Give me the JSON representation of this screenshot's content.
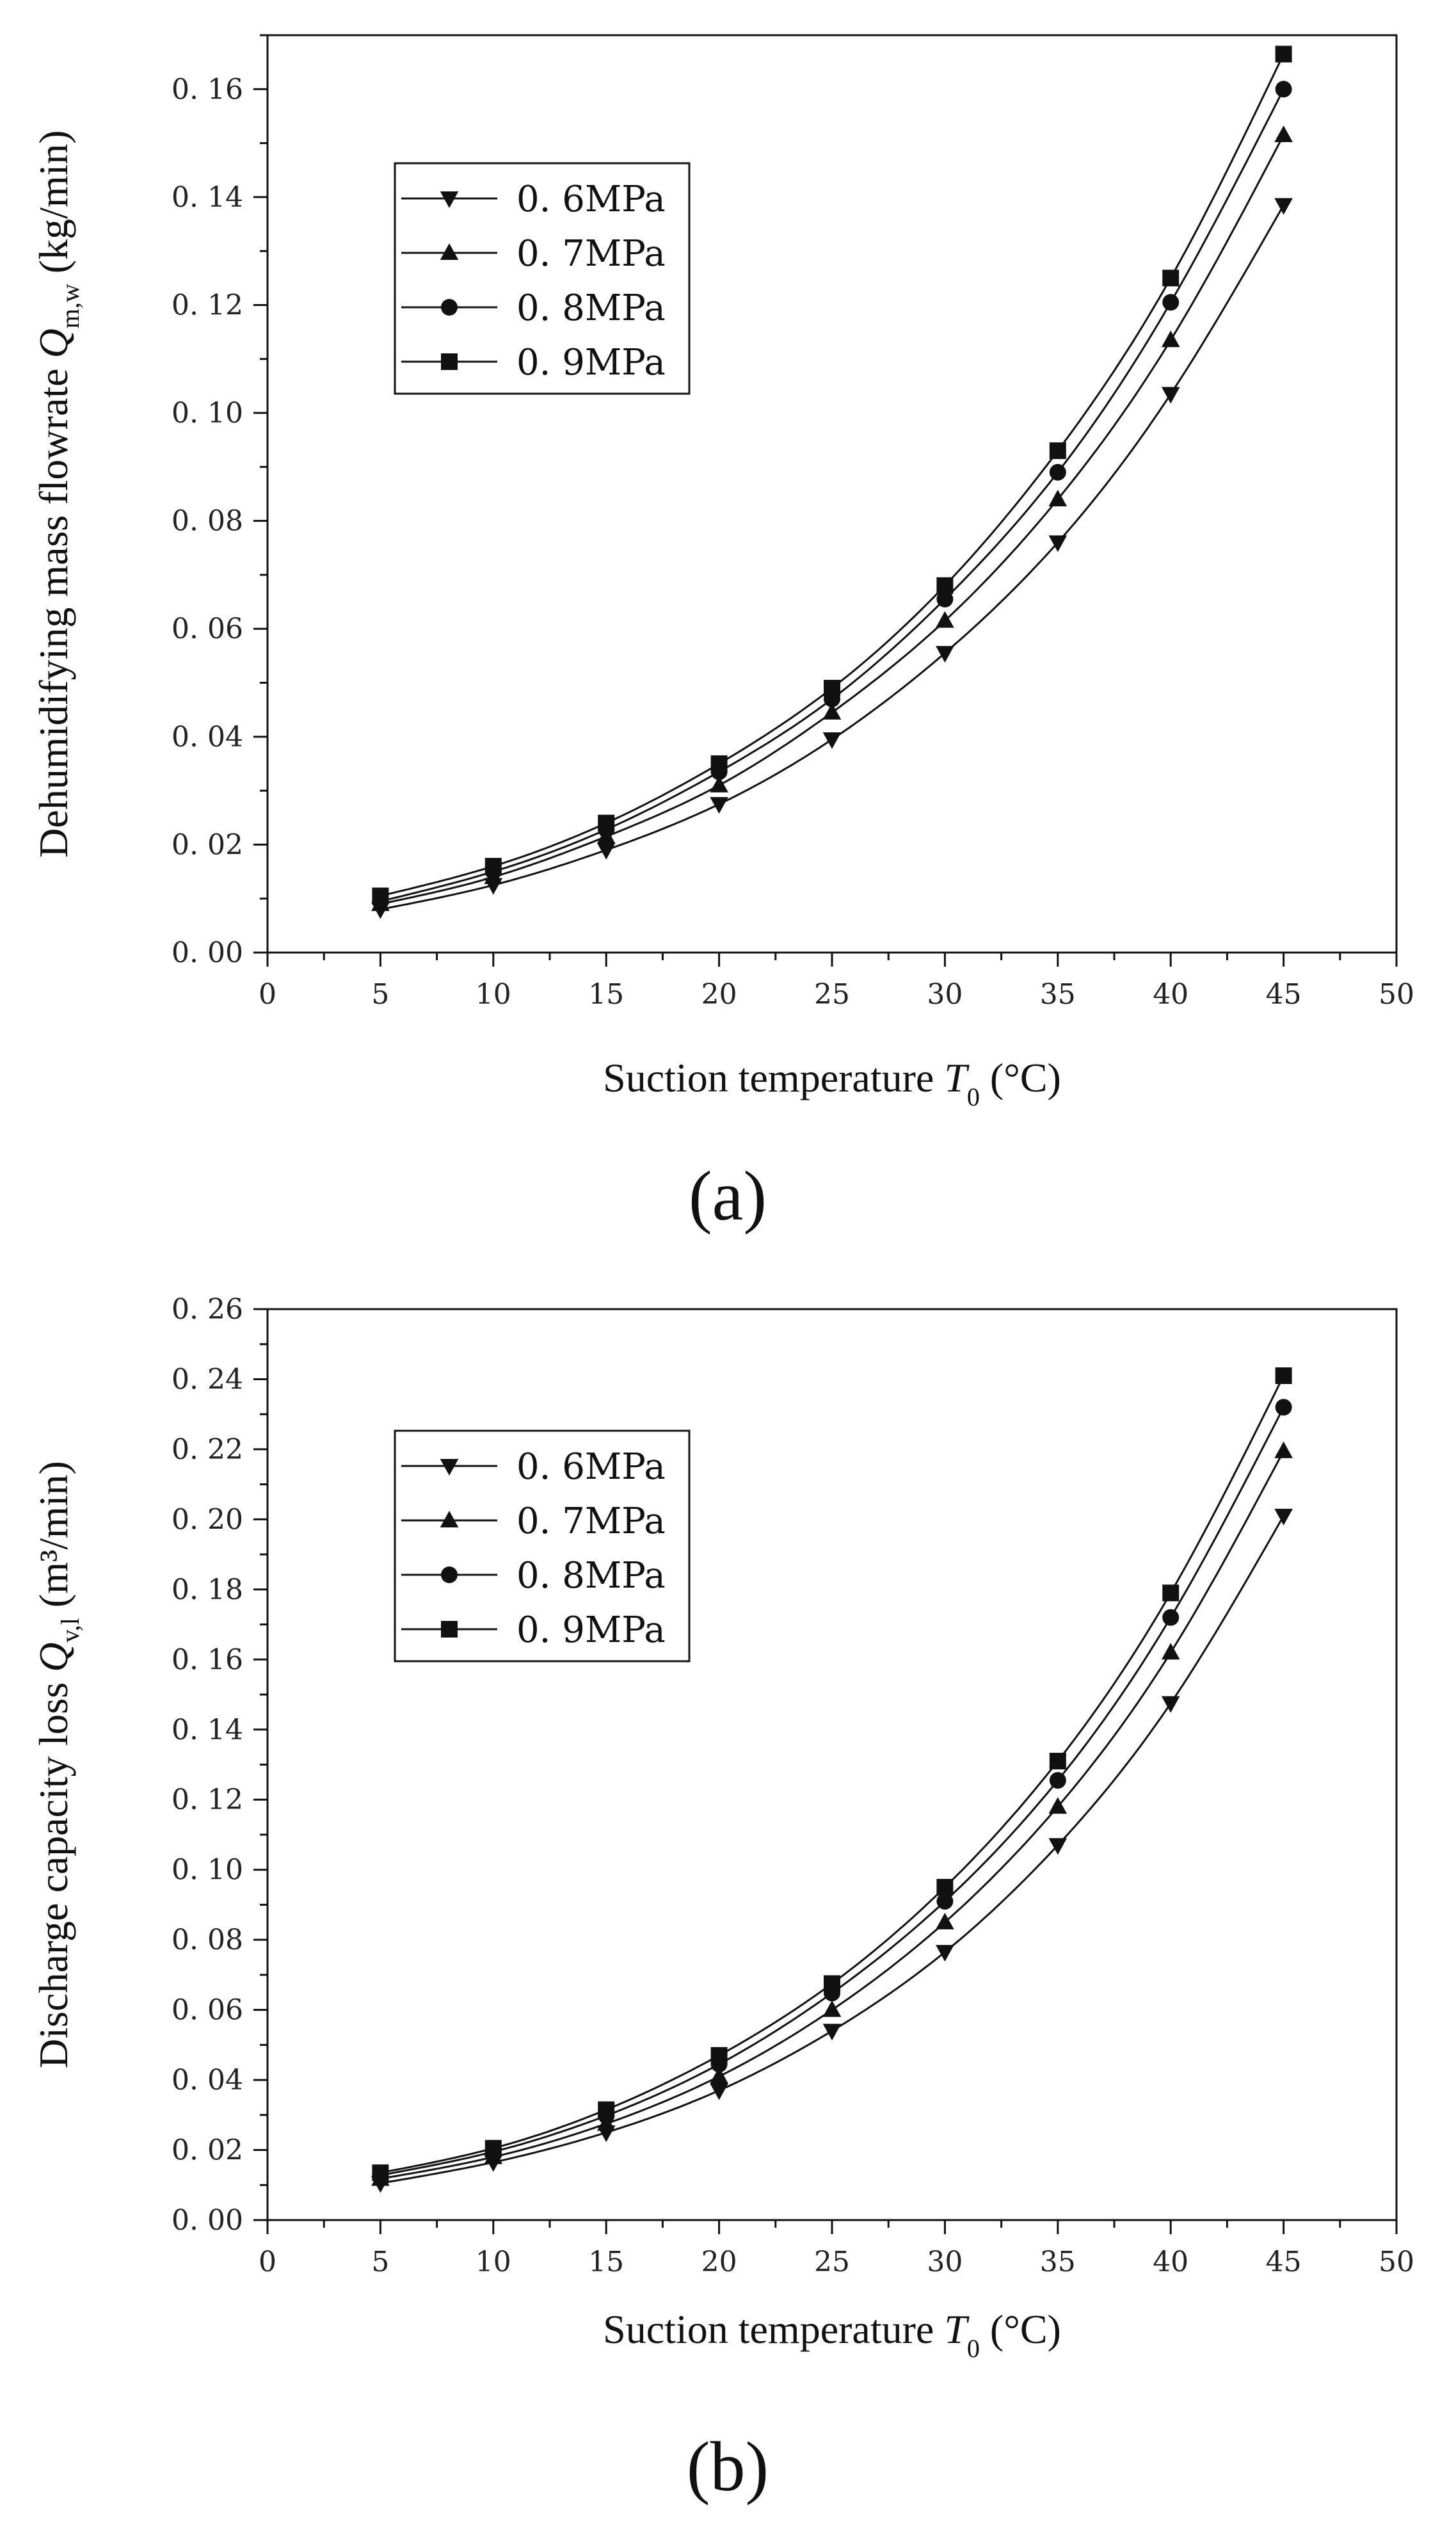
{
  "chart_data": [
    {
      "type": "line",
      "panel_label": "(a)",
      "x": [
        5,
        10,
        15,
        20,
        25,
        30,
        35,
        40,
        45
      ],
      "xlim": [
        0,
        50
      ],
      "ylim": [
        0,
        0.17
      ],
      "xticks": [
        "0",
        "5",
        "10",
        "15",
        "20",
        "25",
        "30",
        "35",
        "40",
        "45",
        "50"
      ],
      "yticks": [
        "0. 00",
        "0. 02",
        "0. 04",
        "0. 06",
        "0. 08",
        "0. 10",
        "0. 12",
        "0. 14",
        "0. 16"
      ],
      "ytick_values": [
        0,
        0.02,
        0.04,
        0.06,
        0.08,
        0.1,
        0.12,
        0.14,
        0.16
      ],
      "xlabel_main": "Suction temperature ",
      "xlabel_var": "T",
      "xlabel_sub": "0",
      "xlabel_unit": "  (°C)",
      "ylabel_main": "Dehumidifying mass flowrate ",
      "ylabel_var": "Q",
      "ylabel_sub": "m,w",
      "ylabel_unit": "  (kg/min)",
      "legend_position": "upper-left",
      "series": [
        {
          "name": "0. 6MPa",
          "marker": "triangle-down",
          "values": [
            0.008,
            0.0125,
            0.019,
            0.0275,
            0.0395,
            0.0555,
            0.076,
            0.1035,
            0.1385
          ]
        },
        {
          "name": "0. 7MPa",
          "marker": "triangle-up",
          "values": [
            0.009,
            0.014,
            0.0215,
            0.031,
            0.0445,
            0.0615,
            0.084,
            0.1135,
            0.1515
          ]
        },
        {
          "name": "0. 8MPa",
          "marker": "circle",
          "values": [
            0.0095,
            0.015,
            0.0228,
            0.0335,
            0.047,
            0.0655,
            0.089,
            0.1205,
            0.16
          ]
        },
        {
          "name": "0. 9MPa",
          "marker": "square",
          "values": [
            0.0105,
            0.016,
            0.024,
            0.035,
            0.049,
            0.068,
            0.093,
            0.125,
            0.1665
          ]
        }
      ]
    },
    {
      "type": "line",
      "panel_label": "(b)",
      "x": [
        5,
        10,
        15,
        20,
        25,
        30,
        35,
        40,
        45
      ],
      "xlim": [
        0,
        50
      ],
      "ylim": [
        0,
        0.26
      ],
      "xticks": [
        "0",
        "5",
        "10",
        "15",
        "20",
        "25",
        "30",
        "35",
        "40",
        "45",
        "50"
      ],
      "yticks": [
        "0. 00",
        "0. 02",
        "0. 04",
        "0. 06",
        "0. 08",
        "0. 10",
        "0. 12",
        "0. 14",
        "0. 16",
        "0. 18",
        "0. 20",
        "0. 22",
        "0. 24",
        "0. 26"
      ],
      "ytick_values": [
        0,
        0.02,
        0.04,
        0.06,
        0.08,
        0.1,
        0.12,
        0.14,
        0.16,
        0.18,
        0.2,
        0.22,
        0.24,
        0.26
      ],
      "xlabel_main": "Suction temperature ",
      "xlabel_var": "T",
      "xlabel_sub": "0",
      "xlabel_unit": "  (°C)",
      "ylabel_main": "Discharge capacity loss ",
      "ylabel_var": "Q",
      "ylabel_sub": "v,l",
      "ylabel_unit": "  (m³/min)",
      "legend_position": "upper-left",
      "series": [
        {
          "name": "0. 6MPa",
          "marker": "triangle-down",
          "values": [
            0.0105,
            0.0165,
            0.025,
            0.037,
            0.054,
            0.0765,
            0.107,
            0.1475,
            0.201
          ]
        },
        {
          "name": "0. 7MPa",
          "marker": "triangle-up",
          "values": [
            0.0118,
            0.018,
            0.0275,
            0.041,
            0.06,
            0.085,
            0.118,
            0.162,
            0.2195
          ]
        },
        {
          "name": "0. 8MPa",
          "marker": "circle",
          "values": [
            0.0128,
            0.0195,
            0.0298,
            0.0445,
            0.0648,
            0.091,
            0.1255,
            0.172,
            0.232
          ]
        },
        {
          "name": "0. 9MPa",
          "marker": "square",
          "values": [
            0.0135,
            0.0205,
            0.0315,
            0.047,
            0.0675,
            0.095,
            0.131,
            0.179,
            0.241
          ]
        }
      ]
    }
  ]
}
